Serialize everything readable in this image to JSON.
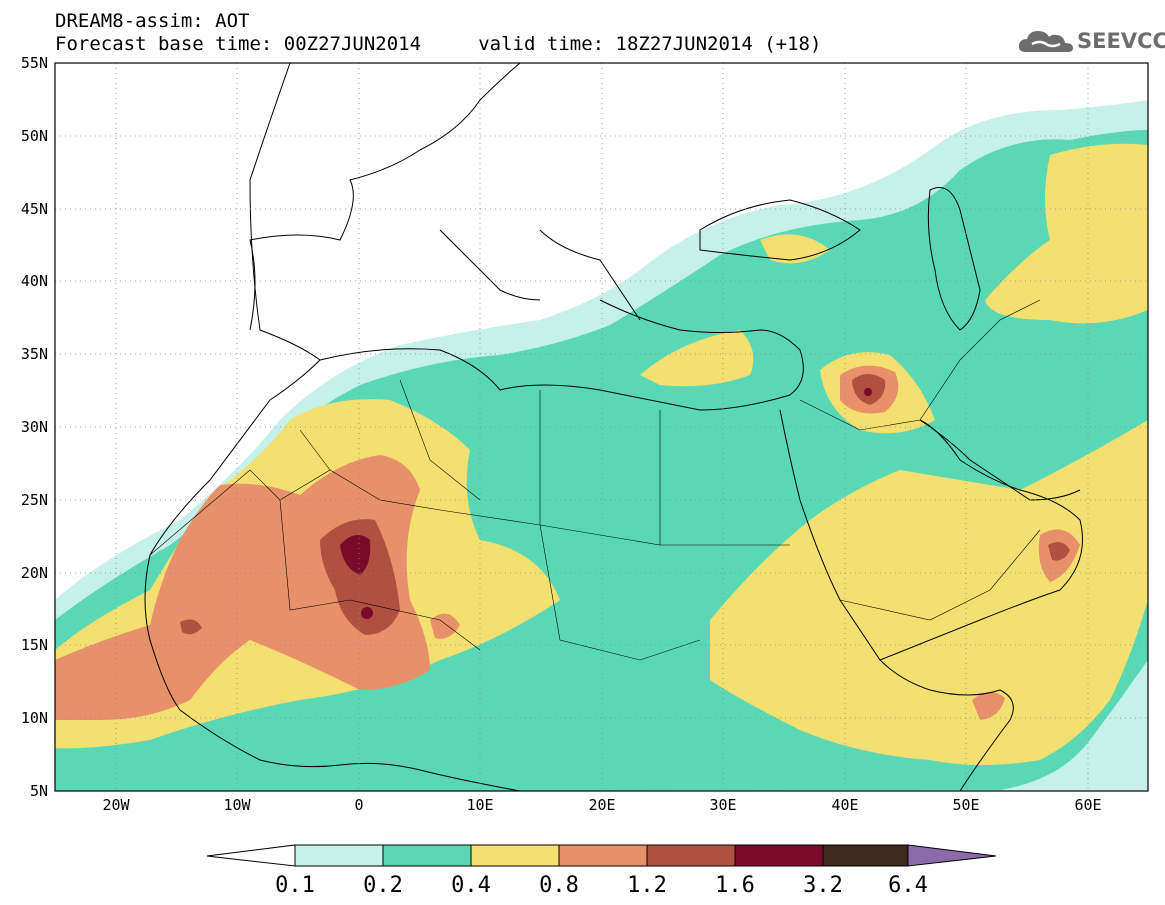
{
  "header": {
    "line1": "DREAM8-assim: AOT",
    "line2": "Forecast base time: 00Z27JUN2014     valid time: 18Z27JUN2014 (+18)"
  },
  "logo": {
    "text": "SEEVCCC",
    "icon": "cloud-icon"
  },
  "map": {
    "projection": "lat-lon",
    "lon_range": [
      -25,
      65
    ],
    "lat_range": [
      5,
      55
    ],
    "lat_labels": [
      "5N",
      "10N",
      "15N",
      "20N",
      "25N",
      "30N",
      "35N",
      "40N",
      "45N",
      "50N",
      "55N"
    ],
    "lon_labels": [
      "20W",
      "10W",
      "0",
      "10E",
      "20E",
      "30E",
      "40E",
      "50E",
      "60E"
    ],
    "grid": "dotted"
  },
  "colorbar": {
    "thresholds": [
      "0.1",
      "0.2",
      "0.4",
      "0.8",
      "1.2",
      "1.6",
      "3.2",
      "6.4"
    ],
    "colors": [
      "#c6f0ea",
      "#5ad8b6",
      "#f4e070",
      "#e8906a",
      "#b05040",
      "#7a0a2a",
      "#3b2a1a"
    ],
    "under_color": "#ffffff",
    "over_color": "#8a6aa8"
  },
  "colors": {
    "c01": "#c6f0ea",
    "c02": "#5ad8b6",
    "c04": "#f4e070",
    "c08": "#e8906a",
    "c12": "#b05040",
    "c16": "#7a0a2a"
  }
}
